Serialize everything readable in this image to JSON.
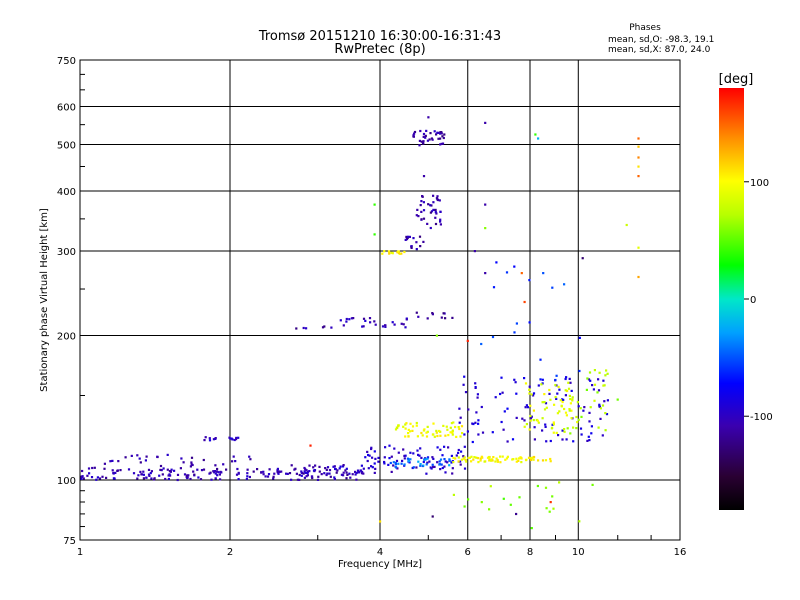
{
  "chart_data": {
    "type": "scatter",
    "title": "Tromsø 20151210 16:30:00-16:31:43",
    "subtitle": "RwPretec (8p)",
    "xlabel": "Frequency [MHz]",
    "ylabel": "Stationary phase Virtual Height [km]",
    "x_scale": "log",
    "y_scale": "log",
    "xlim": [
      1,
      16
    ],
    "ylim": [
      75,
      750
    ],
    "x_ticks": [
      1,
      2,
      4,
      6,
      8,
      10,
      16
    ],
    "x_tick_labels": [
      "1",
      "2",
      "4",
      "6",
      "8",
      "10",
      "16"
    ],
    "y_ticks": [
      75,
      100,
      200,
      300,
      400,
      500,
      600,
      750
    ],
    "y_tick_labels": [
      "75",
      "100",
      "200",
      "300",
      "400",
      "500",
      "600",
      "750"
    ],
    "grid": true,
    "phase_stats": {
      "heading": "Phases",
      "line_o": "mean, sd,O: -98.3, 19.1",
      "line_x": "mean, sd,X:  87.0, 24.0"
    },
    "colorbar": {
      "label": "[deg]",
      "range": [
        -180,
        180
      ],
      "ticks": [
        100,
        0,
        -100
      ],
      "tick_labels": [
        "100",
        "0",
        "-100"
      ]
    },
    "bands": [
      {
        "x_from": 1.0,
        "x_to": 3.7,
        "y_from": 100,
        "y_to": 106,
        "phase": -105,
        "count": 170
      },
      {
        "x_from": 1.05,
        "x_to": 2.2,
        "y_from": 103,
        "y_to": 113,
        "phase": -110,
        "count": 45
      },
      {
        "x_from": 1.75,
        "x_to": 2.1,
        "y_from": 121,
        "y_to": 123,
        "phase": -100,
        "count": 15
      },
      {
        "x_from": 2.6,
        "x_to": 3.8,
        "y_from": 103,
        "y_to": 108,
        "phase": -100,
        "count": 30
      },
      {
        "x_from": 3.7,
        "x_to": 6.0,
        "y_from": 103,
        "y_to": 118,
        "phase": -95,
        "count": 90
      },
      {
        "x_from": 4.2,
        "x_to": 5.6,
        "y_from": 106,
        "y_to": 111,
        "phase": -40,
        "count": 35
      },
      {
        "x_from": 4.3,
        "x_to": 5.9,
        "y_from": 123,
        "y_to": 132,
        "phase": 95,
        "count": 60
      },
      {
        "x_from": 5.6,
        "x_to": 8.8,
        "y_from": 109,
        "y_to": 112,
        "phase": 100,
        "count": 70
      },
      {
        "x_from": 5.7,
        "x_to": 11.5,
        "y_from": 120,
        "y_to": 165,
        "phase": -90,
        "count": 110
      },
      {
        "x_from": 7.8,
        "x_to": 10.0,
        "y_from": 125,
        "y_to": 160,
        "phase": 90,
        "count": 60
      },
      {
        "x_from": 9.5,
        "x_to": 12.0,
        "y_from": 125,
        "y_to": 170,
        "phase": 70,
        "count": 30
      },
      {
        "x_from": 2.6,
        "x_to": 3.3,
        "y_from": 207,
        "y_to": 209,
        "phase": -110,
        "count": 6
      },
      {
        "x_from": 3.3,
        "x_to": 4.6,
        "y_from": 208,
        "y_to": 218,
        "phase": -105,
        "count": 25
      },
      {
        "x_from": 4.7,
        "x_to": 5.6,
        "y_from": 217,
        "y_to": 224,
        "phase": -110,
        "count": 10
      },
      {
        "x_from": 4.0,
        "x_to": 4.5,
        "y_from": 296,
        "y_to": 300,
        "phase": 100,
        "count": 14
      },
      {
        "x_from": 4.5,
        "x_to": 4.9,
        "y_from": 302,
        "y_to": 322,
        "phase": -110,
        "count": 15
      },
      {
        "x_from": 4.7,
        "x_to": 5.3,
        "y_from": 335,
        "y_to": 392,
        "phase": -110,
        "count": 38
      },
      {
        "x_from": 4.6,
        "x_to": 5.4,
        "y_from": 495,
        "y_to": 535,
        "phase": -110,
        "count": 38
      },
      {
        "x_from": 5.5,
        "x_to": 11.0,
        "y_from": 78,
        "y_to": 100,
        "phase": 60,
        "count": 18
      },
      {
        "x_from": 6.2,
        "x_to": 10.5,
        "y_from": 160,
        "y_to": 290,
        "phase": -60,
        "count": 18
      }
    ],
    "points": [
      {
        "x": 5.0,
        "y": 570,
        "phase": -110
      },
      {
        "x": 6.5,
        "y": 555,
        "phase": -110
      },
      {
        "x": 8.2,
        "y": 525,
        "phase": 40
      },
      {
        "x": 8.3,
        "y": 515,
        "phase": -20
      },
      {
        "x": 13.2,
        "y": 515,
        "phase": 150
      },
      {
        "x": 13.2,
        "y": 495,
        "phase": 120
      },
      {
        "x": 13.2,
        "y": 470,
        "phase": 140
      },
      {
        "x": 13.2,
        "y": 450,
        "phase": 110
      },
      {
        "x": 13.2,
        "y": 430,
        "phase": 150
      },
      {
        "x": 13.2,
        "y": 305,
        "phase": 90
      },
      {
        "x": 13.2,
        "y": 265,
        "phase": 130
      },
      {
        "x": 10.2,
        "y": 290,
        "phase": -130
      },
      {
        "x": 12.5,
        "y": 340,
        "phase": 80
      },
      {
        "x": 6.2,
        "y": 300,
        "phase": -110
      },
      {
        "x": 6.5,
        "y": 270,
        "phase": -110
      },
      {
        "x": 6.5,
        "y": 375,
        "phase": -110
      },
      {
        "x": 6.5,
        "y": 335,
        "phase": 60
      },
      {
        "x": 3.9,
        "y": 325,
        "phase": 40
      },
      {
        "x": 3.9,
        "y": 375,
        "phase": 40
      },
      {
        "x": 8.5,
        "y": 270,
        "phase": -50
      },
      {
        "x": 7.7,
        "y": 270,
        "phase": 150
      },
      {
        "x": 7.8,
        "y": 235,
        "phase": 160
      },
      {
        "x": 4.9,
        "y": 430,
        "phase": -110
      },
      {
        "x": 6.0,
        "y": 195,
        "phase": 170
      },
      {
        "x": 5.2,
        "y": 200,
        "phase": 60
      },
      {
        "x": 8.8,
        "y": 90,
        "phase": 165
      },
      {
        "x": 4.0,
        "y": 82,
        "phase": 110
      },
      {
        "x": 5.1,
        "y": 84,
        "phase": -130
      },
      {
        "x": 7.5,
        "y": 85,
        "phase": -120
      },
      {
        "x": 6.4,
        "y": 90,
        "phase": 60
      },
      {
        "x": 2.9,
        "y": 118,
        "phase": 170
      },
      {
        "x": 4.1,
        "y": 210,
        "phase": -110
      }
    ]
  }
}
